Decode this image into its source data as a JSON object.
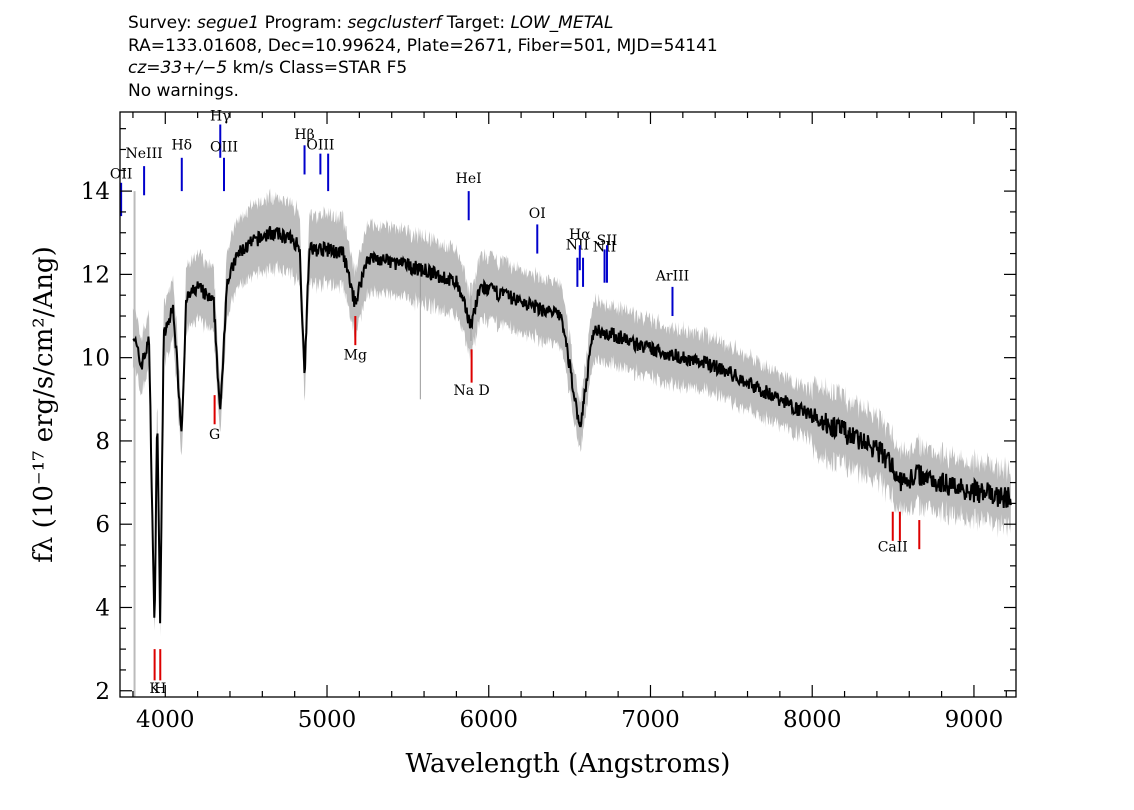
{
  "header": {
    "line1": {
      "survey_label": "Survey: ",
      "survey": "segue1",
      "program_label": " Program: ",
      "program": "segclusterf",
      "target_label": " Target: ",
      "target": "LOW_METAL"
    },
    "line2": "RA=133.01608, Dec=10.99624, Plate=2671, Fiber=501, MJD=54141",
    "line3": {
      "cz": "cz=33+/−5",
      "rest": " km/s Class=STAR F5"
    },
    "line4": "No warnings."
  },
  "colors": {
    "spectrum": "#000000",
    "error_band": "#bdbdbd",
    "emission_lines": "#0000cc",
    "absorption_lines": "#dd0000",
    "sky_lines": "#000000"
  },
  "chart_data": {
    "type": "line",
    "xlabel": "Wavelength (Angstroms)",
    "ylabel": "fλ (10⁻¹⁷ erg/s/cm²/Ang)",
    "xlim": [
      3720,
      9260
    ],
    "ylim": [
      1.85,
      15.9
    ],
    "x_ticks": [
      4000,
      5000,
      6000,
      7000,
      8000,
      9000
    ],
    "y_ticks": [
      2,
      4,
      6,
      8,
      10,
      12,
      14
    ],
    "grid": false,
    "series": [
      {
        "style": "continuum",
        "points": [
          [
            3800,
            10.6
          ],
          [
            3850,
            9.8
          ],
          [
            3900,
            10.4
          ],
          [
            3933,
            3.4
          ],
          [
            3950,
            8.8
          ],
          [
            3968,
            3.6
          ],
          [
            3990,
            10.5
          ],
          [
            4050,
            11.2
          ],
          [
            4101,
            8.2
          ],
          [
            4130,
            11.4
          ],
          [
            4200,
            11.7
          ],
          [
            4300,
            11.3
          ],
          [
            4340,
            8.6
          ],
          [
            4380,
            11.8
          ],
          [
            4450,
            12.5
          ],
          [
            4550,
            12.8
          ],
          [
            4650,
            13.0
          ],
          [
            4750,
            12.9
          ],
          [
            4830,
            12.7
          ],
          [
            4861,
            9.6
          ],
          [
            4890,
            12.6
          ],
          [
            5000,
            12.6
          ],
          [
            5100,
            12.5
          ],
          [
            5173,
            11.3
          ],
          [
            5250,
            12.4
          ],
          [
            5400,
            12.3
          ],
          [
            5600,
            12.1
          ],
          [
            5800,
            11.8
          ],
          [
            5890,
            10.8
          ],
          [
            5950,
            11.7
          ],
          [
            6100,
            11.5
          ],
          [
            6300,
            11.2
          ],
          [
            6450,
            11.0
          ],
          [
            6563,
            8.3
          ],
          [
            6650,
            10.7
          ],
          [
            6800,
            10.5
          ],
          [
            7000,
            10.2
          ],
          [
            7200,
            10.0
          ],
          [
            7400,
            9.8
          ],
          [
            7600,
            9.4
          ],
          [
            7800,
            9.0
          ],
          [
            8000,
            8.6
          ],
          [
            8200,
            8.2
          ],
          [
            8400,
            7.8
          ],
          [
            8500,
            7.4
          ],
          [
            8542,
            7.0
          ],
          [
            8662,
            7.2
          ],
          [
            8800,
            7.0
          ],
          [
            9000,
            6.8
          ],
          [
            9230,
            6.6
          ]
        ]
      }
    ],
    "error_band": {
      "description_free": true,
      "halfwidth_pct": 0.06
    },
    "line_markers": [
      {
        "label": "OII",
        "wavelength": 3727,
        "kind": "emission",
        "y0": 13.4,
        "y1": 14.2,
        "label_y": 14.3
      },
      {
        "label": "NeIII",
        "wavelength": 3869,
        "kind": "emission",
        "y0": 13.9,
        "y1": 14.6,
        "label_y": 14.8
      },
      {
        "label": "Hδ",
        "wavelength": 4102,
        "kind": "emission",
        "y0": 14.0,
        "y1": 14.8,
        "label_y": 15.0
      },
      {
        "label": "Hγ",
        "wavelength": 4340,
        "kind": "emission",
        "y0": 14.8,
        "y1": 15.6,
        "label_y": 15.7
      },
      {
        "label": "OIII",
        "wavelength": 4363,
        "kind": "emission",
        "y0": 14.0,
        "y1": 14.8,
        "label_y": 14.95
      },
      {
        "label": "Hβ",
        "wavelength": 4861,
        "kind": "emission",
        "y0": 14.4,
        "y1": 15.1,
        "label_y": 15.25
      },
      {
        "label": "OIII",
        "wavelength": 4959,
        "kind": "emission",
        "y0": 14.4,
        "y1": 14.9,
        "label_y": 15.0
      },
      {
        "label": "",
        "wavelength": 5007,
        "kind": "emission",
        "y0": 14.0,
        "y1": 14.9,
        "label_y": 0
      },
      {
        "label": "HeI",
        "wavelength": 5876,
        "kind": "emission",
        "y0": 13.3,
        "y1": 14.0,
        "label_y": 14.2
      },
      {
        "label": "OI",
        "wavelength": 6300,
        "kind": "emission",
        "y0": 12.5,
        "y1": 13.2,
        "label_y": 13.35
      },
      {
        "label": "NII",
        "wavelength": 6548,
        "kind": "emission",
        "y0": 11.7,
        "y1": 12.4,
        "label_y": 12.6
      },
      {
        "label": "Hα",
        "wavelength": 6563,
        "kind": "emission",
        "y0": 12.1,
        "y1": 12.7,
        "label_y": 12.85
      },
      {
        "label": "",
        "wavelength": 6583,
        "kind": "emission",
        "y0": 11.7,
        "y1": 12.4,
        "label_y": 0
      },
      {
        "label": "NII",
        "wavelength": 6716,
        "kind": "emission",
        "y0": 11.8,
        "y1": 12.6,
        "label_y": 12.55
      },
      {
        "label": "SII",
        "wavelength": 6731,
        "kind": "emission",
        "y0": 11.8,
        "y1": 12.7,
        "label_y": 12.7
      },
      {
        "label": "ArIII",
        "wavelength": 7136,
        "kind": "emission",
        "y0": 11.0,
        "y1": 11.7,
        "label_y": 11.85
      },
      {
        "label": "K",
        "wavelength": 3934,
        "kind": "absorption",
        "y0": 2.25,
        "y1": 3.0,
        "label_y": 1.95
      },
      {
        "label": "H",
        "wavelength": 3969,
        "kind": "absorption",
        "y0": 2.25,
        "y1": 3.0,
        "label_y": 1.95
      },
      {
        "label": "G",
        "wavelength": 4305,
        "kind": "absorption",
        "y0": 8.4,
        "y1": 9.1,
        "label_y": 8.05
      },
      {
        "label": "Mg",
        "wavelength": 5175,
        "kind": "absorption",
        "y0": 10.3,
        "y1": 11.0,
        "label_y": 9.95
      },
      {
        "label": "Na  D",
        "wavelength": 5894,
        "kind": "absorption",
        "y0": 9.4,
        "y1": 10.2,
        "label_y": 9.1
      },
      {
        "label": "CaII",
        "wavelength": 8498,
        "kind": "absorption",
        "y0": 5.6,
        "y1": 6.3,
        "label_y": 5.35
      },
      {
        "label": "",
        "wavelength": 8542,
        "kind": "absorption",
        "y0": 5.6,
        "y1": 6.3,
        "label_y": 0
      },
      {
        "label": "",
        "wavelength": 8662,
        "kind": "absorption",
        "y0": 5.4,
        "y1": 6.1,
        "label_y": 0
      }
    ]
  }
}
